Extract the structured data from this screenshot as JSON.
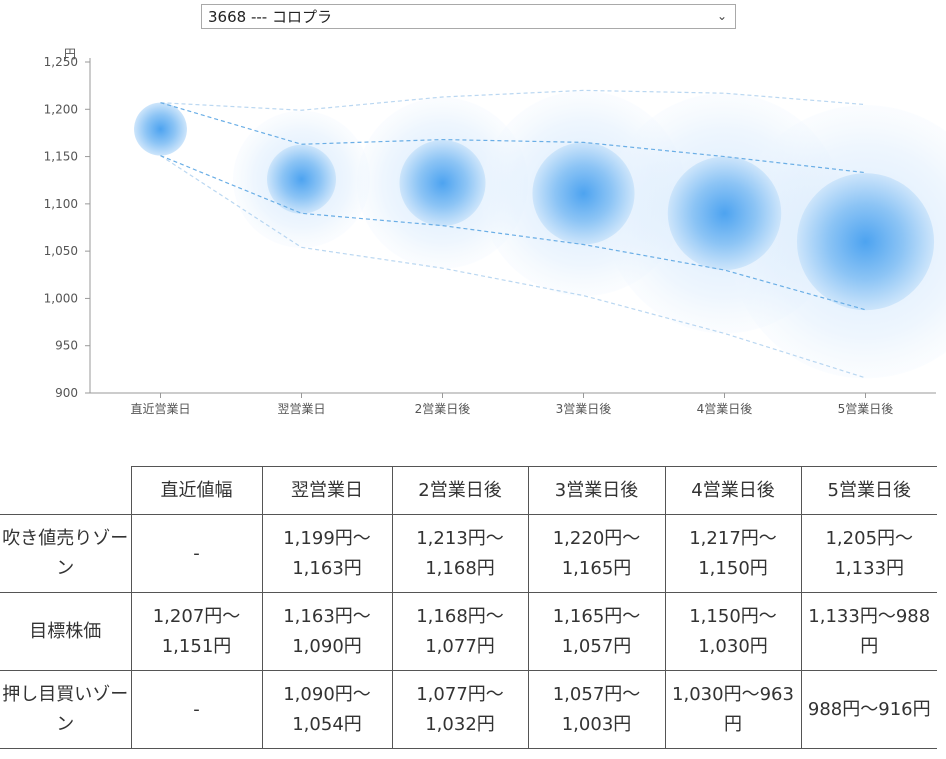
{
  "selector": {
    "value": "3668 --- コロプラ"
  },
  "chart_data": {
    "type": "scatter",
    "title": "",
    "xlabel": "",
    "ylabel": "円",
    "ylim": [
      900,
      1250
    ],
    "yticks": [
      900,
      950,
      1000,
      1050,
      1100,
      1150,
      1200,
      1250
    ],
    "ytick_labels": [
      "900",
      "950",
      "1,000",
      "1,050",
      "1,100",
      "1,150",
      "1,200",
      "1,250"
    ],
    "categories": [
      "直近営業日",
      "翌営業日",
      "2営業日後",
      "3営業日後",
      "4営業日後",
      "5営業日後"
    ],
    "points": [
      {
        "category": "直近営業日",
        "center": 1179,
        "inner": [
          1151,
          1207
        ],
        "outer": [
          1151,
          1207
        ]
      },
      {
        "category": "翌営業日",
        "center": 1126,
        "inner": [
          1090,
          1163
        ],
        "outer": [
          1054,
          1199
        ]
      },
      {
        "category": "2営業日後",
        "center": 1122,
        "inner": [
          1077,
          1168
        ],
        "outer": [
          1032,
          1213
        ]
      },
      {
        "category": "3営業日後",
        "center": 1111,
        "inner": [
          1057,
          1165
        ],
        "outer": [
          1003,
          1220
        ]
      },
      {
        "category": "4営業日後",
        "center": 1090,
        "inner": [
          1030,
          1150
        ],
        "outer": [
          963,
          1217
        ]
      },
      {
        "category": "5営業日後",
        "center": 1060,
        "inner": [
          988,
          1133
        ],
        "outer": [
          916,
          1205
        ]
      }
    ],
    "colors": {
      "bubble": "#4da3f0",
      "bubble_light": "#e3f0fd",
      "guide": "#6aaee6",
      "axis": "#999999"
    },
    "grid": false,
    "legend": "none"
  },
  "table": {
    "headers": [
      "",
      "直近値幅",
      "翌営業日",
      "2営業日後",
      "3営業日後",
      "4営業日後",
      "5営業日後"
    ],
    "rows": [
      {
        "label": "吹き値売りゾーン",
        "cells": [
          "-",
          "1,199円～1,163円",
          "1,213円～1,168円",
          "1,220円～1,165円",
          "1,217円～1,150円",
          "1,205円～1,133円"
        ]
      },
      {
        "label": "目標株価",
        "cells": [
          "1,207円～1,151円",
          "1,163円～1,090円",
          "1,168円～1,077円",
          "1,165円～1,057円",
          "1,150円～1,030円",
          "1,133円～988円"
        ]
      },
      {
        "label": "押し目買いゾーン",
        "cells": [
          "-",
          "1,090円～1,054円",
          "1,077円～1,032円",
          "1,057円～1,003円",
          "1,030円～963円",
          "988円～916円"
        ]
      }
    ]
  }
}
